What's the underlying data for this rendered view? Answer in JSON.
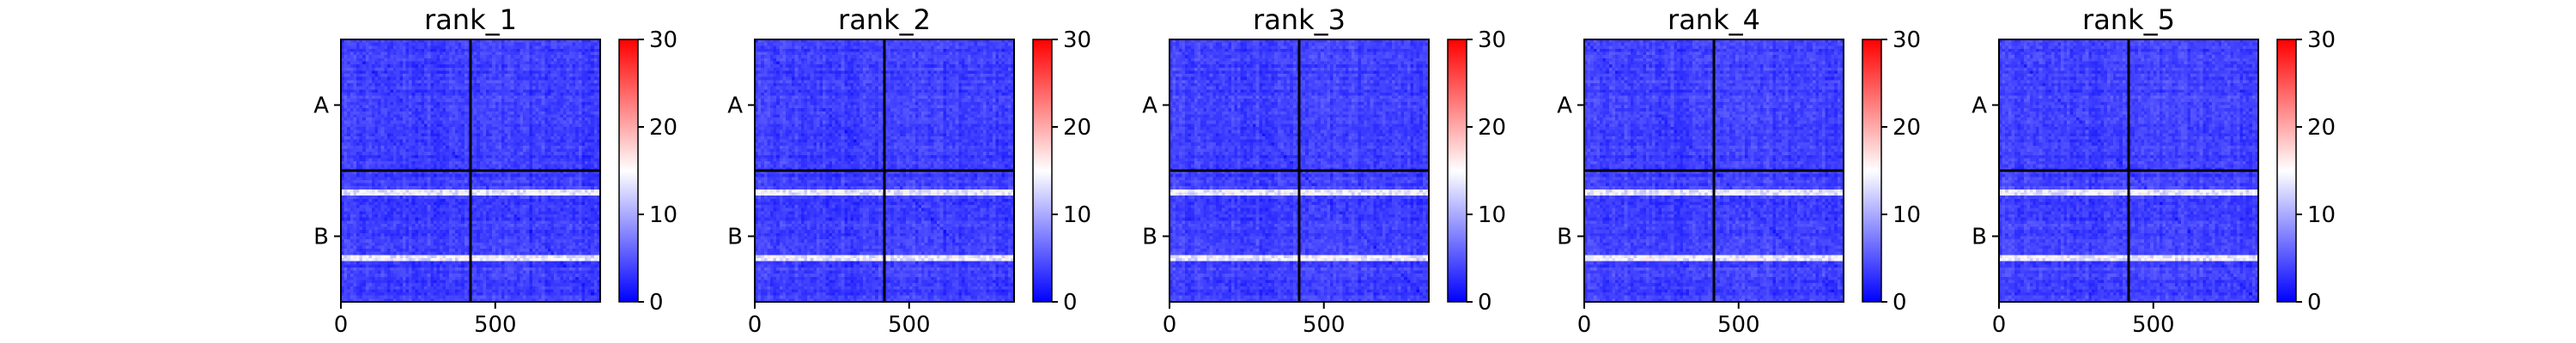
{
  "chart_data": {
    "type": "heatmap",
    "panels": [
      {
        "title": "rank_1"
      },
      {
        "title": "rank_2"
      },
      {
        "title": "rank_3"
      },
      {
        "title": "rank_4"
      },
      {
        "title": "rank_5"
      }
    ],
    "row_groups": [
      "A",
      "B"
    ],
    "group_boundary": 420,
    "xlim": [
      0,
      840
    ],
    "xticks": [
      0,
      500
    ],
    "xtick_labels": [
      "0",
      "500"
    ],
    "colorbar": {
      "range": [
        0,
        30
      ],
      "ticks": [
        0,
        10,
        20,
        30
      ],
      "tick_labels": [
        "0",
        "10",
        "20",
        "30"
      ],
      "colormap": "bwr",
      "colors": {
        "low": "#0000ff",
        "mid": "#ffffff",
        "high": "#ff0000"
      }
    },
    "typical_value_range": [
      0,
      6
    ],
    "bright_rows": [
      {
        "group": "B",
        "value": 15
      }
    ]
  }
}
